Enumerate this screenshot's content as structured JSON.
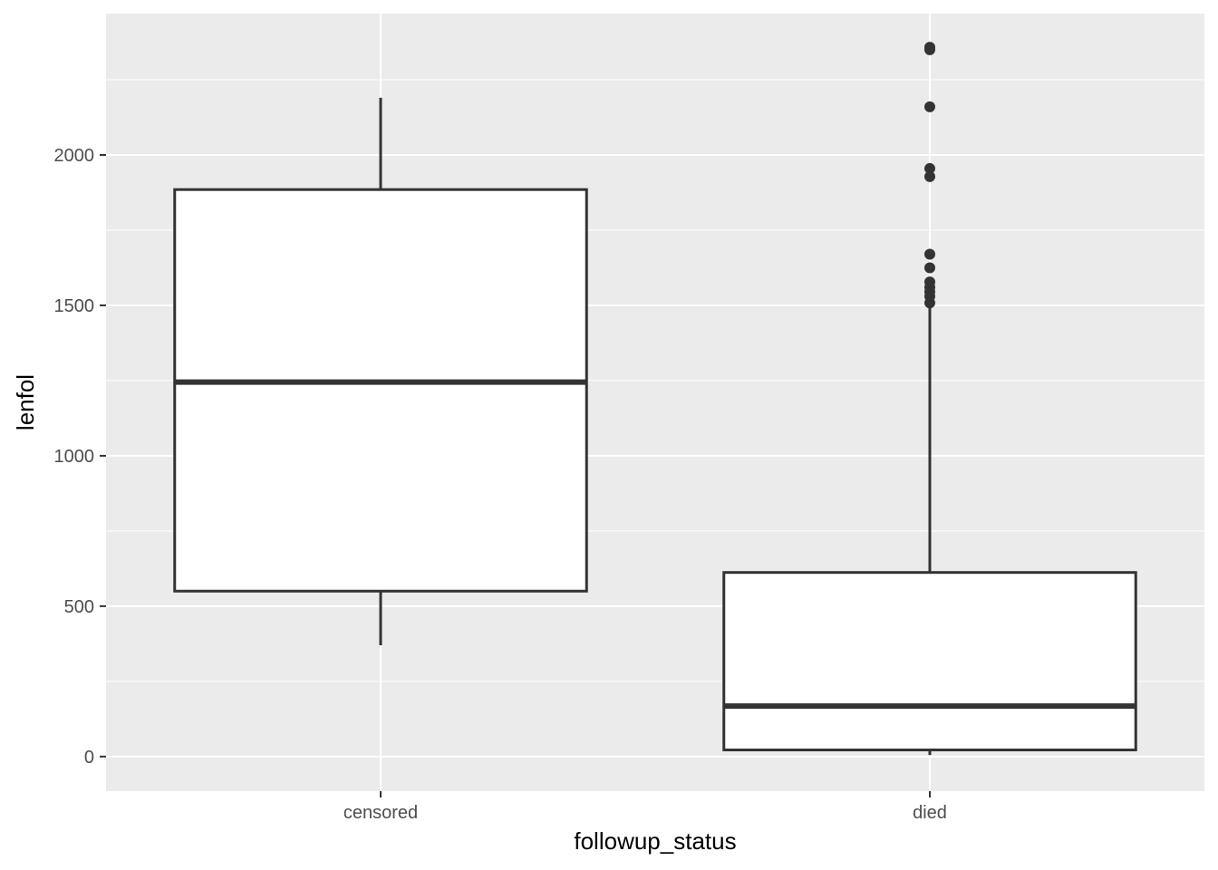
{
  "chart_data": {
    "type": "box",
    "title": "",
    "xlabel": "followup_status",
    "ylabel": "lenfol",
    "categories": [
      "censored",
      "died"
    ],
    "boxes": [
      {
        "category": "censored",
        "whisker_low": 370,
        "q1": 550,
        "median": 1245,
        "q3": 1885,
        "whisker_high": 2190,
        "outliers": []
      },
      {
        "category": "died",
        "whisker_low": 5,
        "q1": 22,
        "median": 168,
        "q3": 612,
        "whisker_high": 1500,
        "outliers": [
          1508,
          1530,
          1545,
          1560,
          1578,
          1625,
          1670,
          1928,
          1955,
          2160,
          2350,
          2358
        ]
      }
    ],
    "ylim": [
      -115,
      2470
    ],
    "yticks": [
      0,
      500,
      1000,
      1500,
      2000
    ],
    "grid": true,
    "legend": "none",
    "colors": {
      "panel": "#ebebeb",
      "grid": "#ffffff",
      "box_fill": "#ffffff",
      "box_stroke": "#333333",
      "tick": "#333333",
      "tick_text": "#4d4d4d"
    }
  }
}
